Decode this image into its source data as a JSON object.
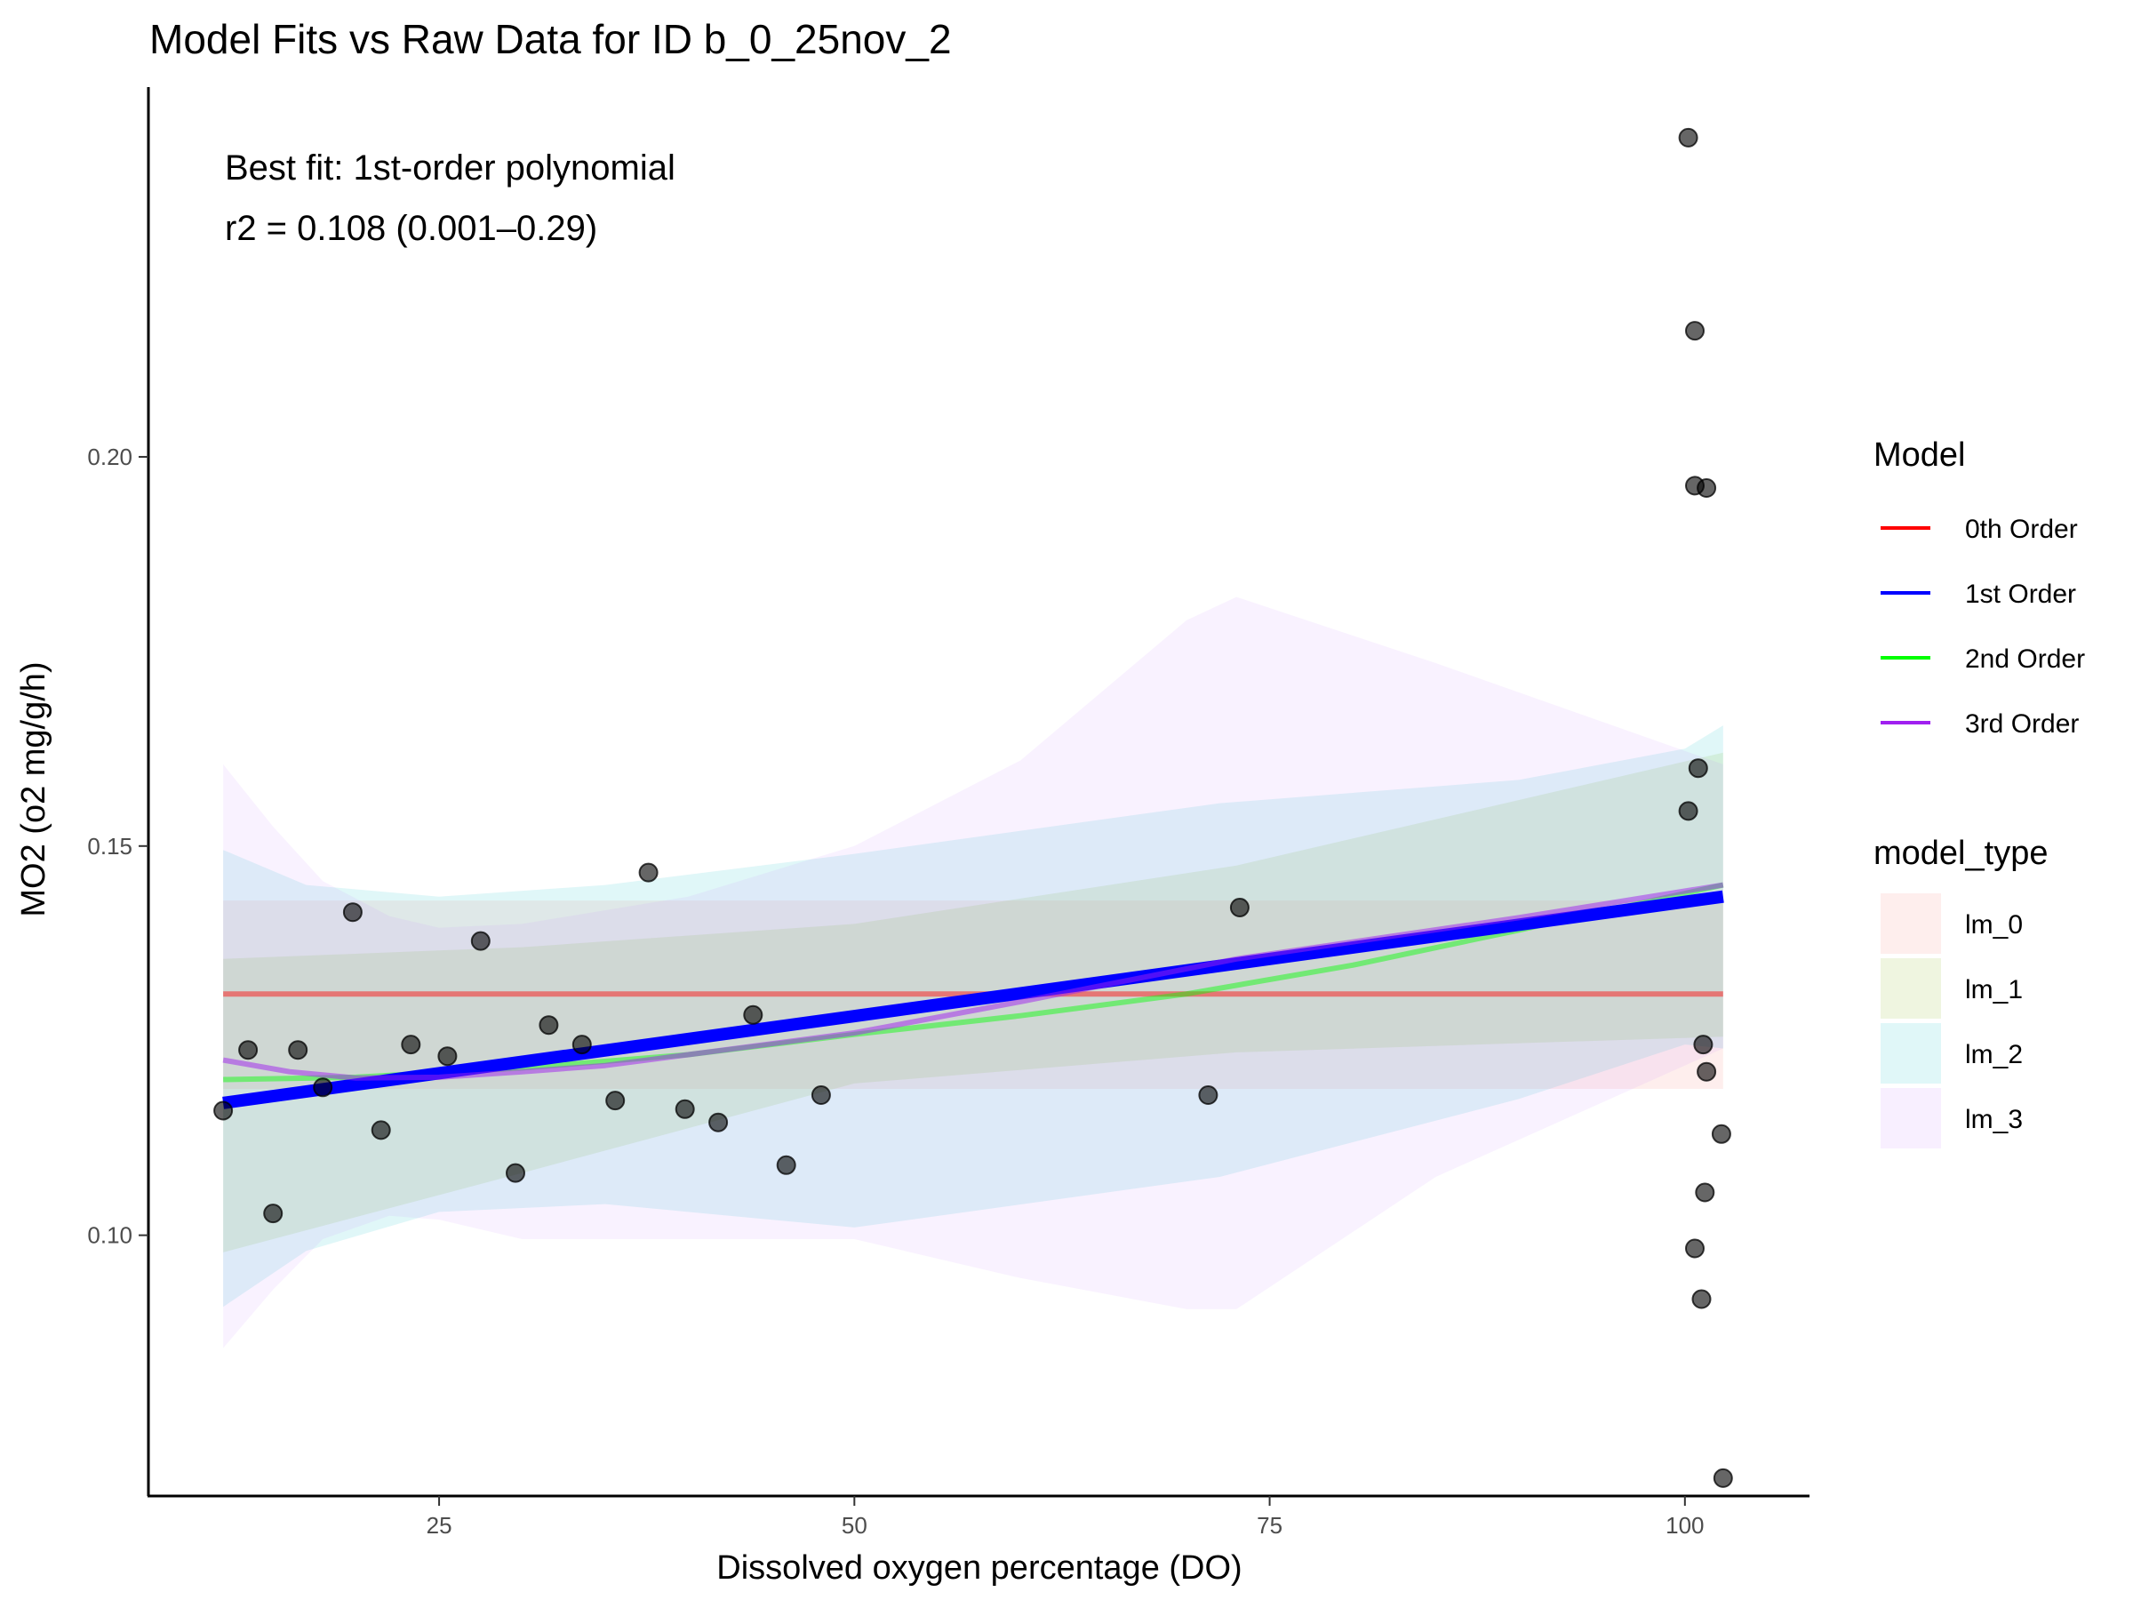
{
  "chart_data": {
    "type": "scatter",
    "title": "Model Fits vs Raw Data for ID b_0_25nov_2",
    "xlabel": "Dissolved oxygen percentage (DO)",
    "ylabel": "MO2 (o2 mg/g/h)",
    "xlim": [
      7.5,
      107.5
    ],
    "ylim": [
      0.0665,
      0.2475
    ],
    "x_ticks": [
      25,
      50,
      75,
      100
    ],
    "y_ticks": [
      0.1,
      0.15,
      0.2
    ],
    "x_tick_labels": [
      "25",
      "50",
      "75",
      "100"
    ],
    "y_tick_labels": [
      "0.10",
      "0.15",
      "0.20"
    ],
    "grid": false,
    "legend_position": "right",
    "annotations": [
      "Best fit: 1st-order polynomial",
      "r2 = 0.108 (0.001–0.29)"
    ],
    "points": [
      {
        "x": 12.0,
        "y": 0.116
      },
      {
        "x": 13.5,
        "y": 0.1238
      },
      {
        "x": 15.0,
        "y": 0.1028
      },
      {
        "x": 16.5,
        "y": 0.1238
      },
      {
        "x": 18.0,
        "y": 0.119
      },
      {
        "x": 19.8,
        "y": 0.1415
      },
      {
        "x": 21.5,
        "y": 0.1135
      },
      {
        "x": 23.3,
        "y": 0.1245
      },
      {
        "x": 25.5,
        "y": 0.123
      },
      {
        "x": 27.5,
        "y": 0.1378
      },
      {
        "x": 29.6,
        "y": 0.108
      },
      {
        "x": 31.6,
        "y": 0.127
      },
      {
        "x": 33.6,
        "y": 0.1245
      },
      {
        "x": 35.6,
        "y": 0.1173
      },
      {
        "x": 37.6,
        "y": 0.1466
      },
      {
        "x": 39.8,
        "y": 0.1162
      },
      {
        "x": 41.8,
        "y": 0.1145
      },
      {
        "x": 43.9,
        "y": 0.1283
      },
      {
        "x": 45.9,
        "y": 0.109
      },
      {
        "x": 48.0,
        "y": 0.118
      },
      {
        "x": 71.3,
        "y": 0.118
      },
      {
        "x": 73.2,
        "y": 0.1421
      },
      {
        "x": 100.2,
        "y": 0.241
      },
      {
        "x": 100.6,
        "y": 0.2162
      },
      {
        "x": 100.6,
        "y": 0.1963
      },
      {
        "x": 101.3,
        "y": 0.196
      },
      {
        "x": 100.2,
        "y": 0.1545
      },
      {
        "x": 100.8,
        "y": 0.16
      },
      {
        "x": 101.1,
        "y": 0.1245
      },
      {
        "x": 101.3,
        "y": 0.121
      },
      {
        "x": 102.2,
        "y": 0.113
      },
      {
        "x": 101.2,
        "y": 0.1055
      },
      {
        "x": 100.6,
        "y": 0.0983
      },
      {
        "x": 101.0,
        "y": 0.0918
      },
      {
        "x": 102.3,
        "y": 0.0688
      }
    ],
    "series": [
      {
        "name": "0th Order",
        "color": "#ff0000",
        "ribbon_group": "lm_0",
        "line": [
          [
            12,
            0.131
          ],
          [
            102.3,
            0.131
          ]
        ],
        "ribbon_upper": [
          [
            12,
            0.143
          ],
          [
            102.3,
            0.143
          ]
        ],
        "ribbon_lower": [
          [
            12,
            0.1188
          ],
          [
            102.3,
            0.1188
          ]
        ]
      },
      {
        "name": "1st Order",
        "color": "#0000ff",
        "ribbon_group": "lm_1",
        "line": [
          [
            12,
            0.117
          ],
          [
            102.3,
            0.1435
          ]
        ],
        "ribbon_upper": [
          [
            12,
            0.1355
          ],
          [
            30,
            0.137
          ],
          [
            50,
            0.14
          ],
          [
            73,
            0.1475
          ],
          [
            102.3,
            0.162
          ]
        ],
        "ribbon_lower": [
          [
            12,
            0.0978
          ],
          [
            30,
            0.108
          ],
          [
            50,
            0.1195
          ],
          [
            73,
            0.1235
          ],
          [
            102.3,
            0.1255
          ]
        ]
      },
      {
        "name": "2nd Order",
        "color": "#00ff00",
        "ribbon_group": "lm_2",
        "line": [
          [
            12,
            0.12
          ],
          [
            20,
            0.1203
          ],
          [
            30,
            0.1215
          ],
          [
            40,
            0.1232
          ],
          [
            50,
            0.1258
          ],
          [
            60,
            0.1282
          ],
          [
            70,
            0.131
          ],
          [
            80,
            0.1347
          ],
          [
            90,
            0.1392
          ],
          [
            102.3,
            0.145
          ]
        ],
        "ribbon_upper": [
          [
            12,
            0.1495
          ],
          [
            17,
            0.145
          ],
          [
            25,
            0.1435
          ],
          [
            35,
            0.145
          ],
          [
            50,
            0.149
          ],
          [
            72,
            0.1555
          ],
          [
            90,
            0.1585
          ],
          [
            100,
            0.1625
          ],
          [
            102.3,
            0.1655
          ]
        ],
        "ribbon_lower": [
          [
            12,
            0.0908
          ],
          [
            17,
            0.098
          ],
          [
            25,
            0.103
          ],
          [
            35,
            0.104
          ],
          [
            50,
            0.101
          ],
          [
            72,
            0.1075
          ],
          [
            90,
            0.1175
          ],
          [
            100,
            0.1245
          ],
          [
            102.3,
            0.124
          ]
        ]
      },
      {
        "name": "3rd Order",
        "color": "#a020f0",
        "ribbon_group": "lm_3",
        "line": [
          [
            12,
            0.1225
          ],
          [
            16,
            0.121
          ],
          [
            20,
            0.1202
          ],
          [
            25,
            0.1203
          ],
          [
            30,
            0.121
          ],
          [
            35,
            0.1218
          ],
          [
            40,
            0.1232
          ],
          [
            50,
            0.126
          ],
          [
            60,
            0.13
          ],
          [
            73,
            0.1355
          ],
          [
            90,
            0.1408
          ],
          [
            102.3,
            0.145
          ]
        ],
        "ribbon_upper": [
          [
            12,
            0.1605
          ],
          [
            15,
            0.1525
          ],
          [
            18,
            0.1455
          ],
          [
            22,
            0.141
          ],
          [
            25,
            0.1395
          ],
          [
            30,
            0.14
          ],
          [
            40,
            0.1435
          ],
          [
            50,
            0.15
          ],
          [
            60,
            0.161
          ],
          [
            70,
            0.179
          ],
          [
            73,
            0.182
          ],
          [
            85,
            0.1735
          ],
          [
            102.3,
            0.1605
          ]
        ],
        "ribbon_lower": [
          [
            12,
            0.0855
          ],
          [
            15,
            0.093
          ],
          [
            18,
            0.0995
          ],
          [
            22,
            0.1025
          ],
          [
            25,
            0.102
          ],
          [
            30,
            0.0995
          ],
          [
            40,
            0.0995
          ],
          [
            50,
            0.0995
          ],
          [
            60,
            0.0945
          ],
          [
            70,
            0.0905
          ],
          [
            73,
            0.0905
          ],
          [
            85,
            0.1075
          ],
          [
            102.3,
            0.124
          ]
        ]
      }
    ],
    "legend_model": {
      "title": "Model",
      "items": [
        {
          "label": "0th Order",
          "color": "#ff0000"
        },
        {
          "label": "1st Order",
          "color": "#0000ff"
        },
        {
          "label": "2nd Order",
          "color": "#00ff00"
        },
        {
          "label": "3rd Order",
          "color": "#a020f0"
        }
      ]
    },
    "legend_model_type": {
      "title": "model_type",
      "items": [
        {
          "label": "lm_0",
          "color": "#f8766d"
        },
        {
          "label": "lm_1",
          "color": "#7cae00"
        },
        {
          "label": "lm_2",
          "color": "#00bfc4"
        },
        {
          "label": "lm_3",
          "color": "#c77cff"
        }
      ]
    }
  }
}
